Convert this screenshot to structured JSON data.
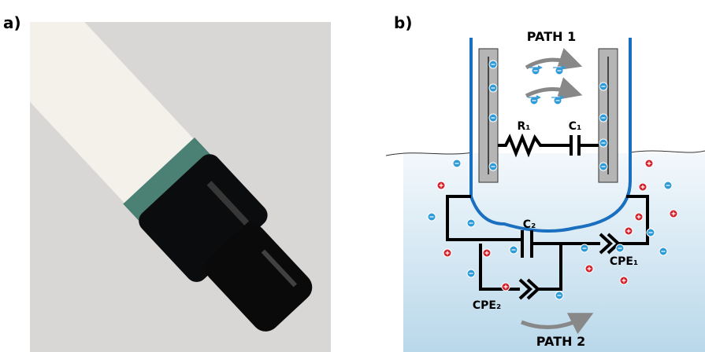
{
  "panels": {
    "a": {
      "label": "a)"
    },
    "b": {
      "label": "b)",
      "path1": "PATH 1",
      "path2": "PATH 2",
      "components": {
        "r1": "R₁",
        "c1": "C₁",
        "c2": "C₂",
        "cpe1": "CPE₁",
        "cpe2": "CPE₂"
      }
    }
  }
}
